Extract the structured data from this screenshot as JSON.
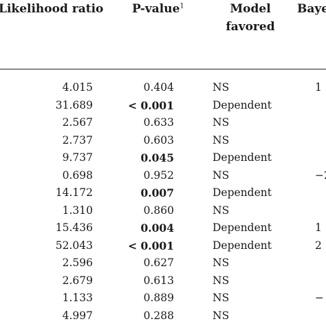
{
  "headers": {
    "likelihood_ratio": "Likelihood ratio",
    "p_value": "P-value",
    "p_value_footnote": "1",
    "model_favored_line1": "Model",
    "model_favored_line2": "favored",
    "bayes_partial": "Baye"
  },
  "rows": [
    {
      "lr": "4.015",
      "p": "0.404",
      "p_bold": false,
      "model": "NS",
      "bayes": "1"
    },
    {
      "lr": "31.689",
      "p": "< 0.001",
      "p_bold": true,
      "model": "Dependent",
      "bayes": ""
    },
    {
      "lr": "2.567",
      "p": "0.633",
      "p_bold": false,
      "model": "NS",
      "bayes": ""
    },
    {
      "lr": "2.737",
      "p": "0.603",
      "p_bold": false,
      "model": "NS",
      "bayes": ""
    },
    {
      "lr": "9.737",
      "p": "0.045",
      "p_bold": true,
      "model": "Dependent",
      "bayes": ""
    },
    {
      "lr": "0.698",
      "p": "0.952",
      "p_bold": false,
      "model": "NS",
      "bayes": "−2"
    },
    {
      "lr": "14.172",
      "p": "0.007",
      "p_bold": true,
      "model": "Dependent",
      "bayes": ""
    },
    {
      "lr": "1.310",
      "p": "0.860",
      "p_bold": false,
      "model": "NS",
      "bayes": ""
    },
    {
      "lr": "15.436",
      "p": "0.004",
      "p_bold": true,
      "model": "Dependent",
      "bayes": "1"
    },
    {
      "lr": "52.043",
      "p": "< 0.001",
      "p_bold": true,
      "model": "Dependent",
      "bayes": "2"
    },
    {
      "lr": "2.596",
      "p": "0.627",
      "p_bold": false,
      "model": "NS",
      "bayes": ""
    },
    {
      "lr": "2.679",
      "p": "0.613",
      "p_bold": false,
      "model": "NS",
      "bayes": ""
    },
    {
      "lr": "1.133",
      "p": "0.889",
      "p_bold": false,
      "model": "NS",
      "bayes": "−"
    },
    {
      "lr": "4.997",
      "p": "0.288",
      "p_bold": false,
      "model": "NS",
      "bayes": ""
    }
  ]
}
